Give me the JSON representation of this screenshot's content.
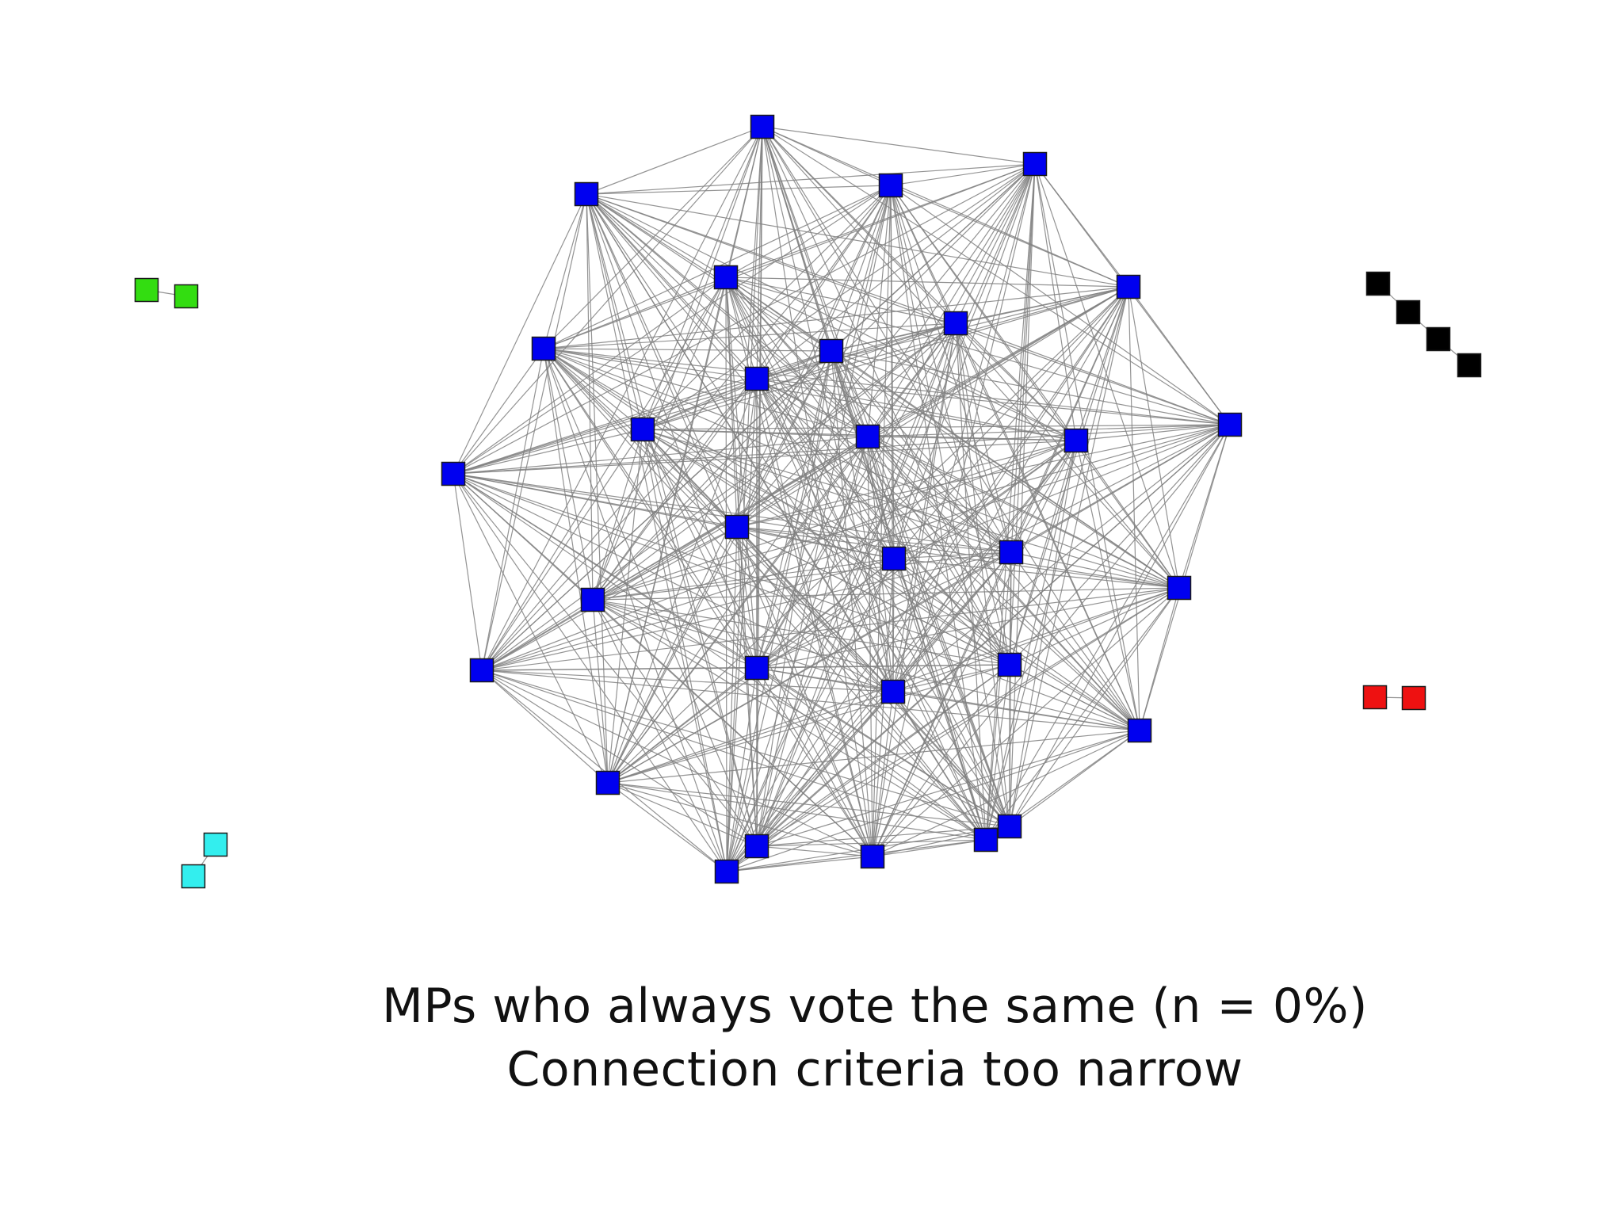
{
  "caption": {
    "line1": "MPs who always vote the same (n = 0%)",
    "line2": "Connection criteria too narrow"
  },
  "colors": {
    "edge": "#808080",
    "node_border": "#1a1a1a",
    "background": "#ffffff"
  },
  "groups": [
    {
      "id": "main-cluster",
      "color": "#0000f0",
      "node_count": 31,
      "connectivity": "fully connected"
    },
    {
      "id": "green-pair",
      "color": "#33dd11",
      "node_count": 2,
      "connectivity": "chain"
    },
    {
      "id": "cyan-pair",
      "color": "#33eeee",
      "node_count": 2,
      "connectivity": "chain"
    },
    {
      "id": "black-chain",
      "color": "#000000",
      "node_count": 4,
      "connectivity": "chain"
    },
    {
      "id": "red-pair",
      "color": "#ee1111",
      "node_count": 2,
      "connectivity": "chain"
    }
  ]
}
